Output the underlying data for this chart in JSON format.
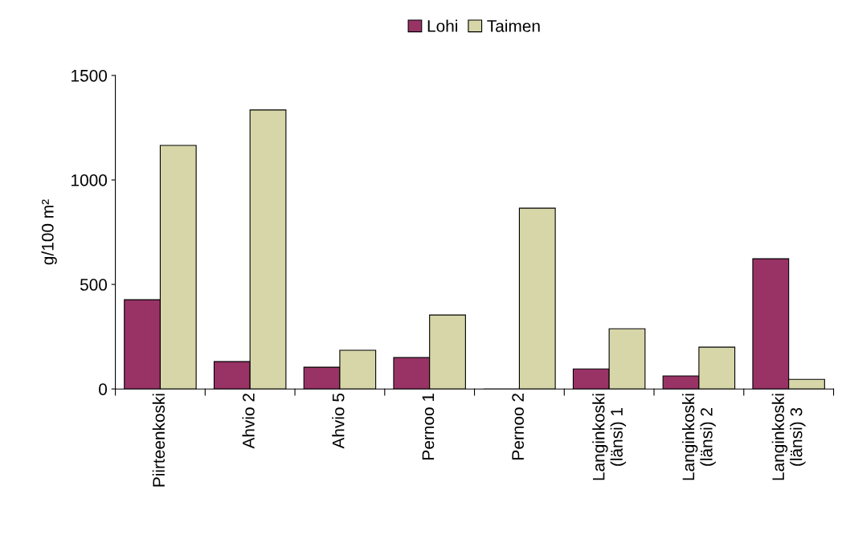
{
  "chart_data": {
    "type": "bar",
    "ylabel": "g/100 m²",
    "categories": [
      "Piirteenkoski",
      "Ahvio 2",
      "Ahvio 5",
      "Pernoo 1",
      "Pernoo 2",
      "Langinkoski\n(länsi) 1",
      "Langinkoski\n(länsi) 2",
      "Langinkoski\n(länsi) 3"
    ],
    "series": [
      {
        "name": "Lohi",
        "color": "#993366",
        "values": [
          427,
          131,
          104,
          150,
          0,
          96,
          62,
          623
        ]
      },
      {
        "name": "Taimen",
        "color": "#d6d6a8",
        "values": [
          1165,
          1335,
          185,
          354,
          865,
          288,
          200,
          46
        ]
      }
    ],
    "ylim": [
      0,
      1500
    ],
    "yticks": [
      0,
      500,
      1000,
      1500
    ],
    "grid": false,
    "legend": "top"
  }
}
